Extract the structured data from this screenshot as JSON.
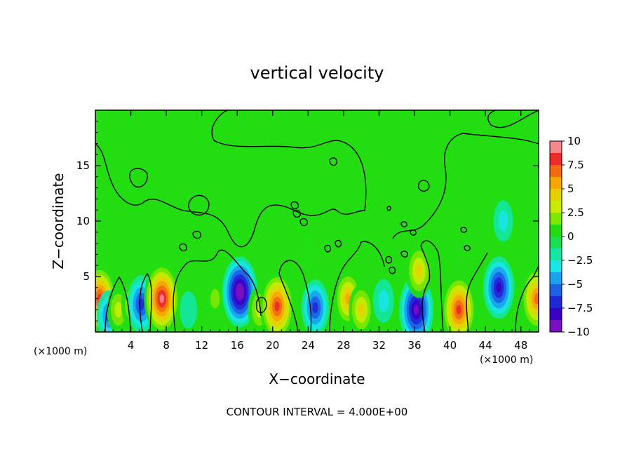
{
  "chart_data": {
    "type": "heatmap",
    "title": "vertical velocity",
    "xlabel": "X−coordinate",
    "ylabel": "Z−coordinate",
    "x_unit_left": "(×1000 m)",
    "x_unit_right": "(×1000 m)",
    "xlim": [
      0,
      50
    ],
    "ylim": [
      0,
      20
    ],
    "xticks": [
      4,
      8,
      12,
      16,
      20,
      24,
      28,
      32,
      36,
      40,
      44,
      48
    ],
    "yticks": [
      5,
      10,
      15
    ],
    "grid": false,
    "colorbar": {
      "range": [
        -10,
        10
      ],
      "tick_values": [
        10,
        7.5,
        5,
        2.5,
        0,
        -2.5,
        -5,
        -7.5,
        -10
      ],
      "tick_labels": [
        "10",
        "7.5",
        "5",
        "2.5",
        "0",
        "−2.5",
        "−5",
        "−7.5",
        "−10"
      ],
      "colors": [
        "#f5878d",
        "#ee2a2a",
        "#f26a10",
        "#f7a500",
        "#e7d000",
        "#c8ec00",
        "#7fe600",
        "#22de10",
        "#18e050",
        "#12e6a0",
        "#18e6e6",
        "#1aa2ef",
        "#1c62e6",
        "#1f27d8",
        "#3a00c8",
        "#7a10c0"
      ]
    },
    "features": [
      {
        "x": 0.5,
        "z": 3.0,
        "value": 8.5
      },
      {
        "x": 1.5,
        "z": 1.5,
        "value": -4.5
      },
      {
        "x": 2.6,
        "z": 2.0,
        "value": 4.0
      },
      {
        "x": 4.2,
        "z": 2.5,
        "value": 4.0
      },
      {
        "x": 5.2,
        "z": 2.5,
        "value": -6.5
      },
      {
        "x": 7.5,
        "z": 3.0,
        "value": 9.5
      },
      {
        "x": 10.5,
        "z": 2.0,
        "value": -1.5
      },
      {
        "x": 13.5,
        "z": 3.0,
        "value": 2.0
      },
      {
        "x": 16.3,
        "z": 3.6,
        "value": -9.5
      },
      {
        "x": 18.5,
        "z": 2.0,
        "value": 4.0
      },
      {
        "x": 20.5,
        "z": 2.3,
        "value": 9.0
      },
      {
        "x": 24.8,
        "z": 2.2,
        "value": -6.0
      },
      {
        "x": 28.5,
        "z": 3.0,
        "value": 6.0
      },
      {
        "x": 30.0,
        "z": 2.0,
        "value": 5.0
      },
      {
        "x": 32.5,
        "z": 2.8,
        "value": -3.0
      },
      {
        "x": 36.2,
        "z": 2.0,
        "value": -9.0
      },
      {
        "x": 36.5,
        "z": 5.5,
        "value": 5.5
      },
      {
        "x": 41.0,
        "z": 2.0,
        "value": 9.0
      },
      {
        "x": 45.5,
        "z": 4.0,
        "value": -7.5
      },
      {
        "x": 49.8,
        "z": 3.0,
        "value": 8.0
      },
      {
        "x": 46.0,
        "z": 10.0,
        "value": -2.5
      },
      {
        "x": 41.5,
        "z": 8.0,
        "value": 1.5
      },
      {
        "x": 24.0,
        "z": 7.0,
        "value": 1.0
      }
    ]
  },
  "footer": "CONTOUR INTERVAL = 4.000E+00"
}
